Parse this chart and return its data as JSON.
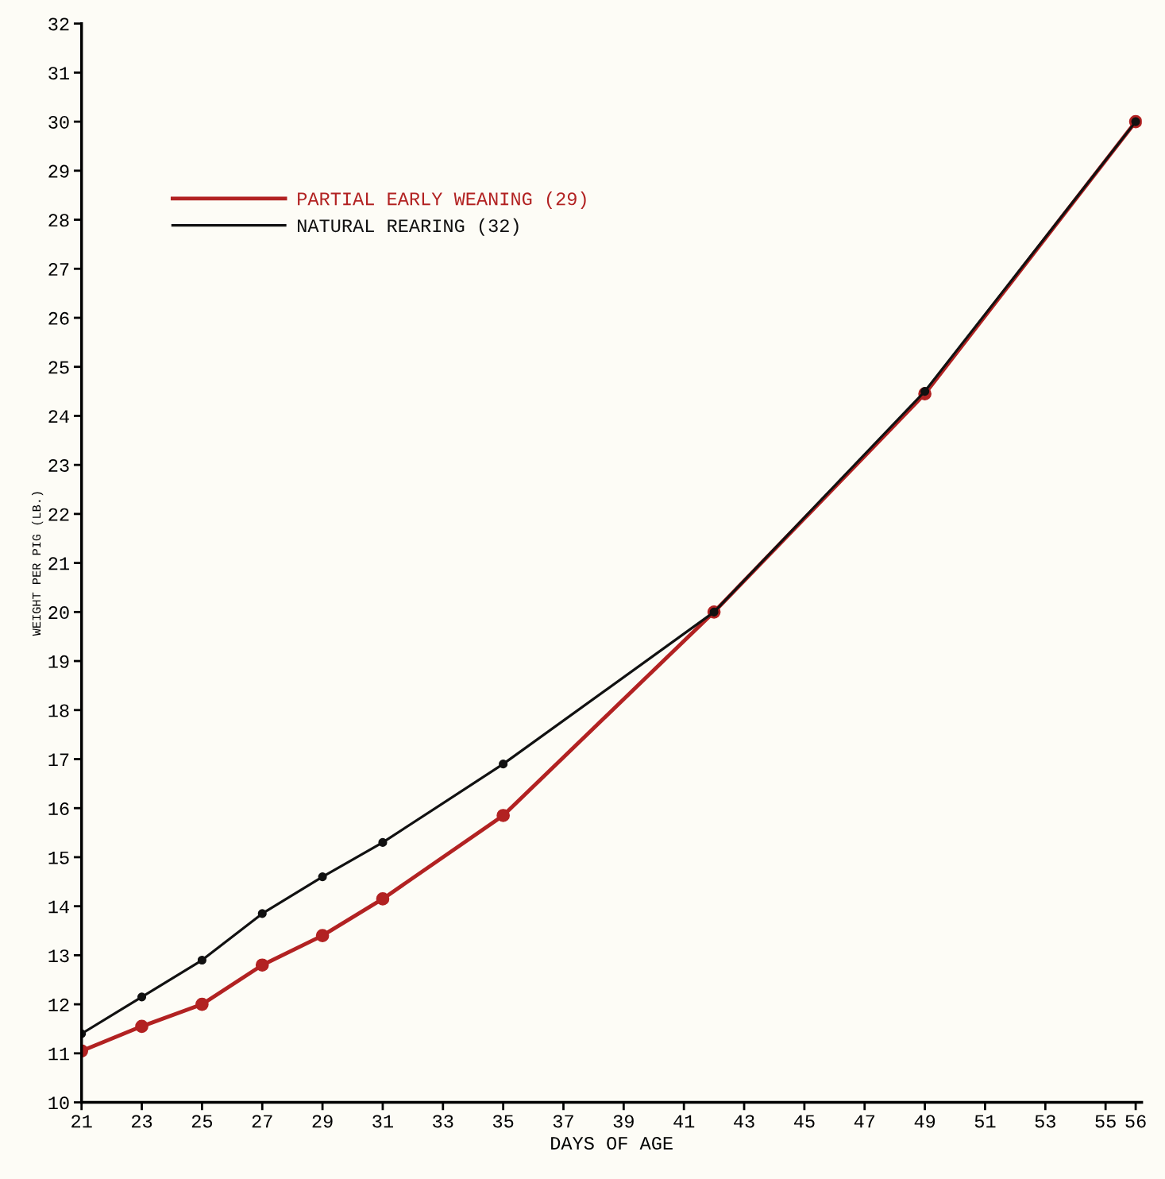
{
  "chart_data": {
    "type": "line",
    "xlabel": "DAYS OF AGE",
    "ylabel": "WEIGHT PER PIG (LB.)",
    "x": [
      21,
      23,
      25,
      27,
      29,
      31,
      35,
      42,
      49,
      56
    ],
    "series": [
      {
        "name": "PARTIAL EARLY WEANING (29)",
        "color": "#b22222",
        "values": [
          11.05,
          11.55,
          12.0,
          12.8,
          13.4,
          14.15,
          15.85,
          20.0,
          24.45,
          30.0
        ]
      },
      {
        "name": "NATURAL REARING (32)",
        "color": "#111111",
        "values": [
          11.4,
          12.15,
          12.9,
          13.85,
          14.6,
          15.3,
          16.9,
          20.0,
          24.5,
          30.0
        ]
      }
    ],
    "xlim": [
      21,
      56.2
    ],
    "xticks": [
      21,
      23,
      25,
      27,
      29,
      31,
      33,
      35,
      37,
      39,
      41,
      43,
      45,
      47,
      49,
      51,
      53,
      55,
      56
    ],
    "ylim": [
      10,
      32
    ],
    "yticks": [
      10,
      11,
      12,
      13,
      14,
      15,
      16,
      17,
      18,
      19,
      20,
      21,
      22,
      23,
      24,
      25,
      26,
      27,
      28,
      29,
      30,
      31,
      32
    ],
    "legend": "top left",
    "marker": "circle",
    "line_style": "solid",
    "grid": false
  }
}
